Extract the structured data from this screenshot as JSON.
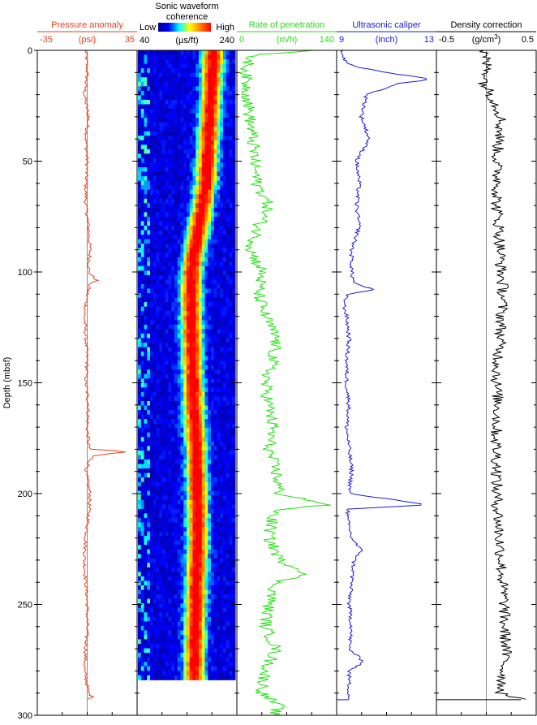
{
  "chart_data": {
    "type": "line",
    "depth_axis": {
      "label": "Depth (mbsf)",
      "range": [
        0,
        300
      ],
      "ticks": [
        0,
        50,
        100,
        150,
        200,
        250,
        300
      ],
      "minor_step": 10,
      "inverted": true
    },
    "tracks": [
      {
        "id": "pressure",
        "title": "Pressure anomaly",
        "unit": "(psi)",
        "min_label": "-35",
        "max_label": "35",
        "range": [
          -35,
          35
        ],
        "color": "#e8401c",
        "baseline": 0,
        "baseline_color": "#8a8a8a",
        "series": [
          [
            0,
            -1
          ],
          [
            10,
            0
          ],
          [
            20,
            -2
          ],
          [
            30,
            1
          ],
          [
            40,
            -1
          ],
          [
            50,
            0
          ],
          [
            60,
            -1
          ],
          [
            70,
            -1
          ],
          [
            80,
            1
          ],
          [
            90,
            2
          ],
          [
            100,
            1
          ],
          [
            104,
            7
          ],
          [
            105,
            2
          ],
          [
            110,
            0
          ],
          [
            120,
            -2
          ],
          [
            130,
            -1
          ],
          [
            140,
            0
          ],
          [
            150,
            -1
          ],
          [
            160,
            1
          ],
          [
            170,
            0
          ],
          [
            178,
            1
          ],
          [
            180,
            2
          ],
          [
            181,
            30
          ],
          [
            182,
            15
          ],
          [
            183,
            4
          ],
          [
            185,
            2
          ],
          [
            190,
            -1
          ],
          [
            200,
            2
          ],
          [
            210,
            1
          ],
          [
            220,
            -1
          ],
          [
            230,
            -2
          ],
          [
            240,
            -1
          ],
          [
            250,
            0
          ],
          [
            260,
            0
          ],
          [
            270,
            -1
          ],
          [
            280,
            -2
          ],
          [
            290,
            1
          ],
          [
            292,
            4
          ],
          [
            293,
            1
          ]
        ]
      },
      {
        "id": "sonic",
        "title": "Sonic waveform coherence",
        "type": "heatmap",
        "unit": "(µs/ft)",
        "min_label": "40",
        "max_label": "240",
        "range": [
          40,
          240
        ],
        "scale_low": "Low",
        "scale_high": "High",
        "depth_range": [
          0,
          284
        ],
        "colormap": [
          "#00008f",
          "#0000ff",
          "#00ffff",
          "#ffff00",
          "#ff7f00",
          "#ff0000"
        ],
        "ridge": [
          [
            0,
            195
          ],
          [
            20,
            190
          ],
          [
            40,
            185
          ],
          [
            60,
            180
          ],
          [
            80,
            165
          ],
          [
            100,
            150
          ],
          [
            120,
            150
          ],
          [
            140,
            152
          ],
          [
            160,
            155
          ],
          [
            180,
            160
          ],
          [
            200,
            162
          ],
          [
            220,
            163
          ],
          [
            240,
            160
          ],
          [
            260,
            158
          ],
          [
            280,
            156
          ],
          [
            284,
            156
          ]
        ]
      },
      {
        "id": "rop",
        "title": "Rate of penetration",
        "unit": "(m/h)",
        "min_label": "0",
        "max_label": "140",
        "range": [
          0,
          140
        ],
        "color": "#22e010",
        "series": [
          [
            0,
            110
          ],
          [
            2,
            20
          ],
          [
            10,
            12
          ],
          [
            20,
            15
          ],
          [
            30,
            18
          ],
          [
            40,
            22
          ],
          [
            50,
            25
          ],
          [
            60,
            28
          ],
          [
            70,
            45
          ],
          [
            80,
            30
          ],
          [
            90,
            20
          ],
          [
            100,
            35
          ],
          [
            110,
            30
          ],
          [
            120,
            40
          ],
          [
            130,
            55
          ],
          [
            140,
            50
          ],
          [
            150,
            40
          ],
          [
            160,
            45
          ],
          [
            170,
            50
          ],
          [
            180,
            45
          ],
          [
            190,
            55
          ],
          [
            200,
            60
          ],
          [
            205,
            130
          ],
          [
            207,
            60
          ],
          [
            210,
            50
          ],
          [
            220,
            45
          ],
          [
            230,
            60
          ],
          [
            236,
            100
          ],
          [
            240,
            55
          ],
          [
            250,
            45
          ],
          [
            260,
            40
          ],
          [
            270,
            55
          ],
          [
            280,
            40
          ],
          [
            290,
            35
          ],
          [
            296,
            60
          ],
          [
            300,
            50
          ]
        ]
      },
      {
        "id": "caliper",
        "title": "Ultrasonic caliper",
        "unit": "(inch)",
        "min_label": "9",
        "max_label": "13",
        "range": [
          9,
          13
        ],
        "color": "#1a1ad6",
        "series": [
          [
            0,
            9.2
          ],
          [
            4,
            9.3
          ],
          [
            6,
            9.5
          ],
          [
            8,
            10.0
          ],
          [
            10,
            11.0
          ],
          [
            13,
            12.8
          ],
          [
            15,
            11.5
          ],
          [
            20,
            10.2
          ],
          [
            30,
            10.0
          ],
          [
            40,
            10.3
          ],
          [
            50,
            9.8
          ],
          [
            60,
            9.9
          ],
          [
            70,
            9.8
          ],
          [
            80,
            9.9
          ],
          [
            90,
            9.6
          ],
          [
            100,
            9.6
          ],
          [
            105,
            9.7
          ],
          [
            108,
            10.5
          ],
          [
            110,
            9.4
          ],
          [
            115,
            9.3
          ],
          [
            120,
            9.4
          ],
          [
            130,
            9.5
          ],
          [
            140,
            9.4
          ],
          [
            150,
            9.4
          ],
          [
            160,
            9.5
          ],
          [
            170,
            9.4
          ],
          [
            180,
            9.5
          ],
          [
            190,
            9.6
          ],
          [
            200,
            9.5
          ],
          [
            205,
            12.7
          ],
          [
            207,
            9.5
          ],
          [
            210,
            9.4
          ],
          [
            220,
            9.6
          ],
          [
            226,
            10.0
          ],
          [
            230,
            9.7
          ],
          [
            240,
            9.6
          ],
          [
            250,
            9.5
          ],
          [
            260,
            9.6
          ],
          [
            270,
            9.5
          ],
          [
            276,
            10.1
          ],
          [
            280,
            9.5
          ],
          [
            290,
            9.5
          ],
          [
            293,
            9.5
          ]
        ]
      },
      {
        "id": "density",
        "title": "Density correction",
        "unit": "(g/cm",
        "unit_sup": "3",
        "unit_close": ")",
        "min_label": "-0.5",
        "max_label": "0.5",
        "range": [
          -0.5,
          0.5
        ],
        "color": "#000000",
        "baseline": 0,
        "baseline_color": "#8a8a8a",
        "series": [
          [
            0,
            -0.03
          ],
          [
            10,
            0.02
          ],
          [
            15,
            -0.02
          ],
          [
            20,
            0.05
          ],
          [
            30,
            0.15
          ],
          [
            40,
            0.13
          ],
          [
            50,
            0.1
          ],
          [
            60,
            0.12
          ],
          [
            70,
            0.1
          ],
          [
            80,
            0.13
          ],
          [
            90,
            0.14
          ],
          [
            100,
            0.15
          ],
          [
            110,
            0.17
          ],
          [
            120,
            0.15
          ],
          [
            130,
            0.14
          ],
          [
            140,
            0.12
          ],
          [
            150,
            0.1
          ],
          [
            160,
            0.12
          ],
          [
            170,
            0.1
          ],
          [
            180,
            0.1
          ],
          [
            190,
            0.11
          ],
          [
            200,
            0.1
          ],
          [
            210,
            0.12
          ],
          [
            220,
            0.13
          ],
          [
            230,
            0.15
          ],
          [
            240,
            0.16
          ],
          [
            250,
            0.18
          ],
          [
            260,
            0.18
          ],
          [
            270,
            0.2
          ],
          [
            280,
            0.17
          ],
          [
            290,
            0.15
          ],
          [
            293,
            0.35
          ]
        ]
      }
    ]
  }
}
